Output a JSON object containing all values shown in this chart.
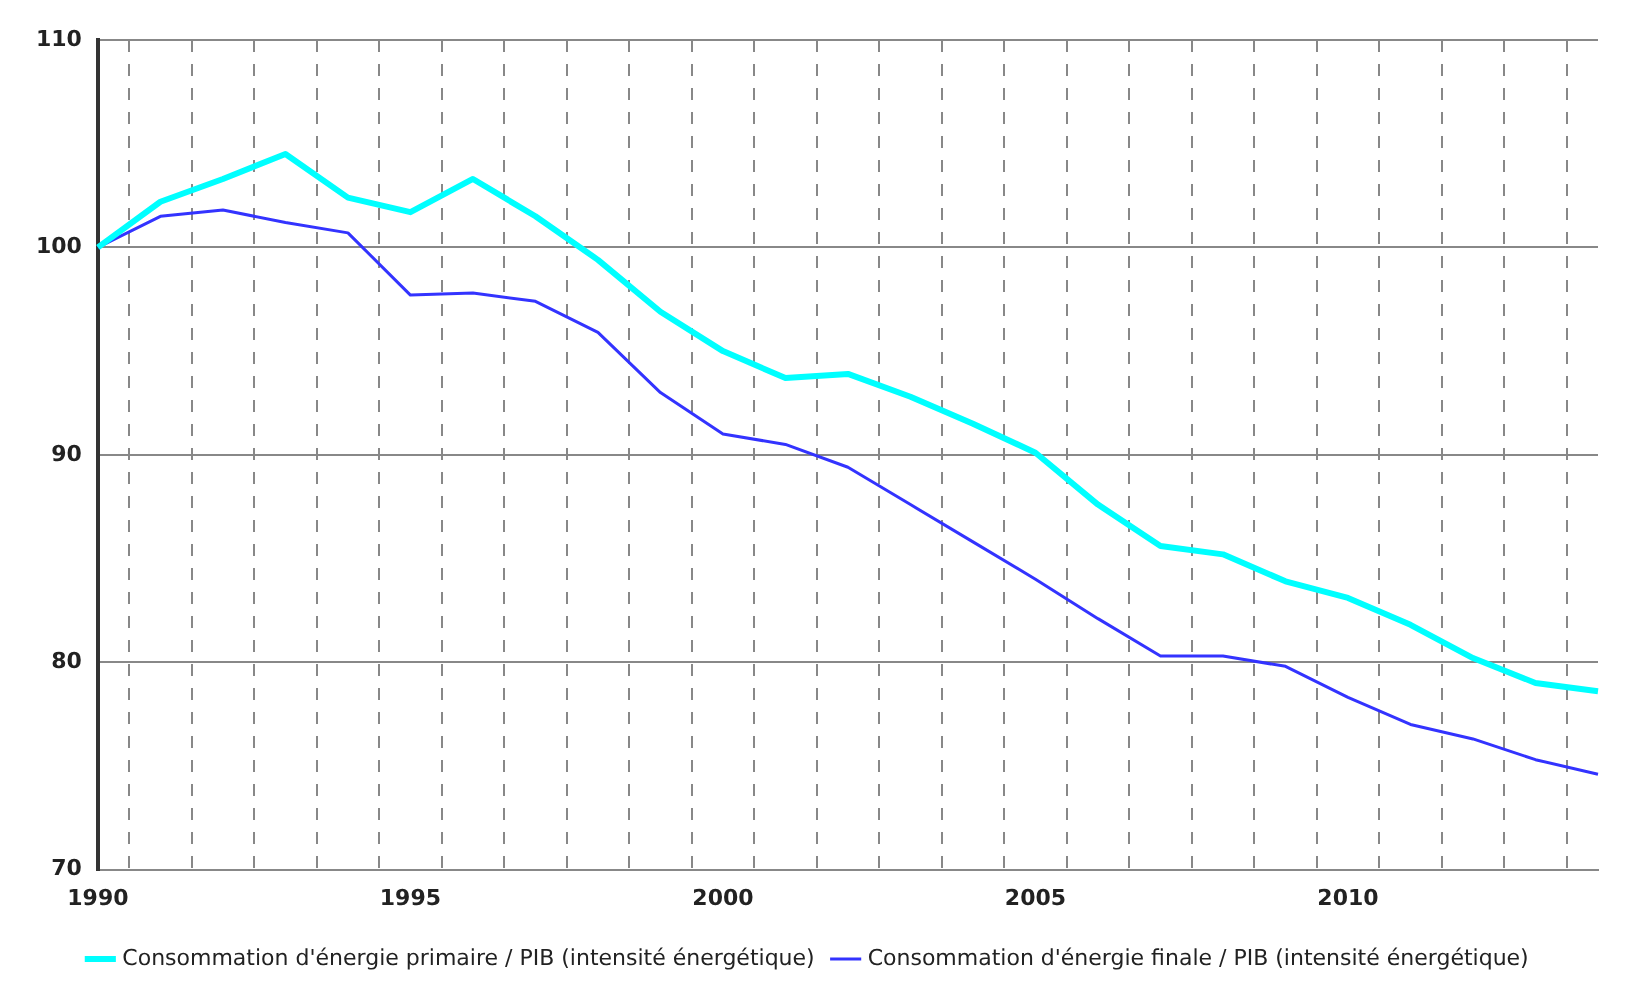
{
  "chart_data": {
    "type": "line",
    "categories": [
      "1990",
      null,
      null,
      null,
      null,
      "1995",
      null,
      null,
      null,
      null,
      "2000",
      null,
      null,
      null,
      null,
      "2005",
      null,
      null,
      null,
      null,
      "2010",
      null,
      null,
      null,
      null
    ],
    "series": [
      {
        "name": "Consommation d'énergie primaire / PIB (intensité énergétique)",
        "color": "#00ffff",
        "values": [
          100,
          102.2,
          103.3,
          104.5,
          102.4,
          101.7,
          103.3,
          101.5,
          99.4,
          96.9,
          95.0,
          93.7,
          93.9,
          92.8,
          91.5,
          90.1,
          87.6,
          85.6,
          85.2,
          83.9,
          83.1,
          81.8,
          80.2,
          79.0,
          78.6
        ]
      },
      {
        "name": "Consommation d'énergie finale / PIB (intensité énergétique)",
        "color": "#3333ff",
        "values": [
          100,
          101.5,
          101.8,
          101.2,
          100.7,
          97.7,
          97.8,
          97.4,
          95.9,
          93.0,
          91.0,
          90.5,
          89.4,
          87.6,
          85.8,
          84.0,
          82.1,
          80.3,
          80.3,
          79.8,
          78.3,
          77.0,
          76.3,
          75.3,
          74.6
        ]
      }
    ],
    "ylim": [
      70,
      110
    ],
    "yticks": [
      70,
      80,
      90,
      100,
      110
    ],
    "grid": true,
    "legend": "bottom",
    "marker": "none",
    "line_style": "solid"
  }
}
